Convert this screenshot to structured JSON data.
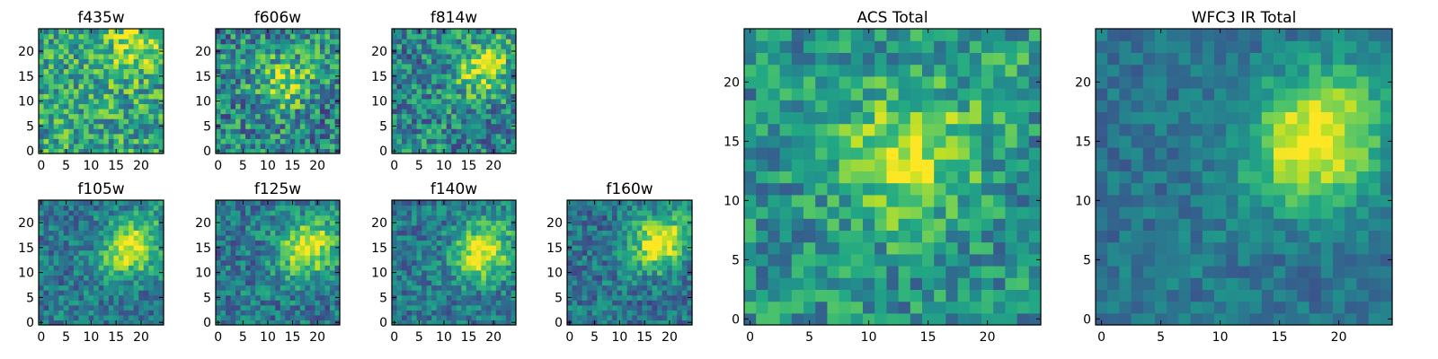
{
  "chart_data": {
    "type": "heatmap",
    "colormap": "viridis",
    "panels": [
      {
        "title": "f435w",
        "x_ticks": [
          0,
          5,
          10,
          15,
          20
        ],
        "y_ticks": [
          0,
          5,
          10,
          15,
          20
        ],
        "xlim": [
          0,
          24
        ],
        "ylim": [
          0,
          24
        ],
        "peak": [
          18,
          22
        ],
        "peak_amp": 0.25,
        "base": 0.58,
        "noise": 0.28
      },
      {
        "title": "f606w",
        "x_ticks": [
          0,
          5,
          10,
          15,
          20
        ],
        "y_ticks": [
          0,
          5,
          10,
          15,
          20
        ],
        "xlim": [
          0,
          24
        ],
        "ylim": [
          0,
          24
        ],
        "peak": [
          13,
          14
        ],
        "peak_amp": 0.35,
        "base": 0.45,
        "noise": 0.3
      },
      {
        "title": "f814w",
        "x_ticks": [
          0,
          5,
          10,
          15,
          20
        ],
        "y_ticks": [
          0,
          5,
          10,
          15,
          20
        ],
        "xlim": [
          0,
          24
        ],
        "ylim": [
          0,
          24
        ],
        "peak": [
          18,
          17
        ],
        "peak_amp": 0.4,
        "base": 0.45,
        "noise": 0.28
      },
      {
        "title": "f105w",
        "x_ticks": [
          0,
          5,
          10,
          15,
          20
        ],
        "y_ticks": [
          0,
          5,
          10,
          15,
          20
        ],
        "xlim": [
          0,
          24
        ],
        "ylim": [
          0,
          24
        ],
        "peak": [
          18,
          15
        ],
        "peak_amp": 0.55,
        "base": 0.4,
        "noise": 0.2
      },
      {
        "title": "f125w",
        "x_ticks": [
          0,
          5,
          10,
          15,
          20
        ],
        "y_ticks": [
          0,
          5,
          10,
          15,
          20
        ],
        "xlim": [
          0,
          24
        ],
        "ylim": [
          0,
          24
        ],
        "peak": [
          18,
          15
        ],
        "peak_amp": 0.55,
        "base": 0.4,
        "noise": 0.22
      },
      {
        "title": "f140w",
        "x_ticks": [
          0,
          5,
          10,
          15,
          20
        ],
        "y_ticks": [
          0,
          5,
          10,
          15,
          20
        ],
        "xlim": [
          0,
          24
        ],
        "ylim": [
          0,
          24
        ],
        "peak": [
          18,
          14
        ],
        "peak_amp": 0.55,
        "base": 0.4,
        "noise": 0.2
      },
      {
        "title": "f160w",
        "x_ticks": [
          0,
          5,
          10,
          15,
          20
        ],
        "y_ticks": [
          0,
          5,
          10,
          15,
          20
        ],
        "xlim": [
          0,
          24
        ],
        "ylim": [
          0,
          24
        ],
        "peak": [
          18,
          16
        ],
        "peak_amp": 0.6,
        "base": 0.38,
        "noise": 0.2
      },
      {
        "title": "ACS Total",
        "x_ticks": [
          0,
          5,
          10,
          15,
          20
        ],
        "y_ticks": [
          0,
          5,
          10,
          15,
          20
        ],
        "xlim": [
          0,
          24
        ],
        "ylim": [
          0,
          24
        ],
        "peak": [
          13,
          14
        ],
        "peak_amp": 0.4,
        "base": 0.5,
        "noise": 0.22
      },
      {
        "title": "WFC3 IR Total",
        "x_ticks": [
          0,
          5,
          10,
          15,
          20
        ],
        "y_ticks": [
          0,
          5,
          10,
          15,
          20
        ],
        "xlim": [
          0,
          24
        ],
        "ylim": [
          0,
          24
        ],
        "peak": [
          18,
          15
        ],
        "peak_amp": 0.6,
        "base": 0.38,
        "noise": 0.12
      }
    ]
  }
}
